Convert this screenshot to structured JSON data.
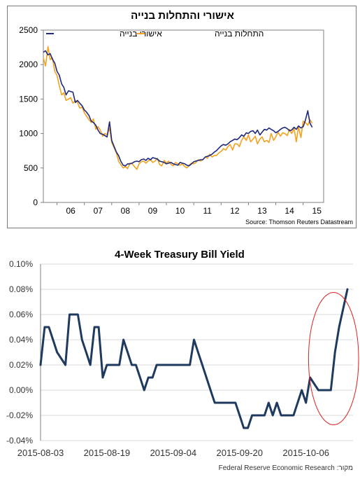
{
  "chart_data": [
    {
      "type": "line",
      "title": "אישורי והתחלות בנייה",
      "source": "Source: Thomson Reuters Datastream",
      "ylim": [
        0,
        2500
      ],
      "yticks": [
        "0",
        "500",
        "1000",
        "1500",
        "2000",
        "2500"
      ],
      "yticks_values": [
        0,
        500,
        1000,
        1500,
        2000,
        2500
      ],
      "xlim": [
        2005.5,
        2015.75
      ],
      "xticks": [
        "06",
        "07",
        "08",
        "09",
        "10",
        "11",
        "12",
        "13",
        "14",
        "15"
      ],
      "xticks_values": [
        2006,
        2007,
        2008,
        2009,
        2010,
        2011,
        2012,
        2013,
        2014,
        2015
      ],
      "grid": false,
      "legend_position": "top",
      "series": [
        {
          "name": "אישורי בנייה",
          "color": "#1f2a7a",
          "x": [
            2005.5,
            2005.58,
            2005.67,
            2005.75,
            2005.83,
            2005.92,
            2006.0,
            2006.08,
            2006.17,
            2006.25,
            2006.33,
            2006.42,
            2006.5,
            2006.58,
            2006.67,
            2006.75,
            2006.83,
            2006.92,
            2007.0,
            2007.08,
            2007.17,
            2007.25,
            2007.33,
            2007.42,
            2007.5,
            2007.58,
            2007.67,
            2007.75,
            2007.83,
            2007.92,
            2008.0,
            2008.08,
            2008.17,
            2008.25,
            2008.33,
            2008.42,
            2008.5,
            2008.58,
            2008.67,
            2008.75,
            2008.83,
            2008.92,
            2009.0,
            2009.08,
            2009.17,
            2009.25,
            2009.33,
            2009.42,
            2009.5,
            2009.58,
            2009.67,
            2009.75,
            2009.83,
            2009.92,
            2010.0,
            2010.08,
            2010.17,
            2010.25,
            2010.33,
            2010.42,
            2010.5,
            2010.58,
            2010.67,
            2010.75,
            2010.83,
            2010.92,
            2011.0,
            2011.08,
            2011.17,
            2011.25,
            2011.33,
            2011.42,
            2011.5,
            2011.58,
            2011.67,
            2011.75,
            2011.83,
            2011.92,
            2012.0,
            2012.08,
            2012.17,
            2012.25,
            2012.33,
            2012.42,
            2012.5,
            2012.58,
            2012.67,
            2012.75,
            2012.83,
            2012.92,
            2013.0,
            2013.08,
            2013.17,
            2013.25,
            2013.33,
            2013.42,
            2013.5,
            2013.58,
            2013.67,
            2013.75,
            2013.83,
            2013.92,
            2014.0,
            2014.08,
            2014.17,
            2014.25,
            2014.33,
            2014.42,
            2014.5,
            2014.58,
            2014.67,
            2014.75,
            2014.83,
            2014.92,
            2015.0,
            2015.08,
            2015.17,
            2015.25,
            2015.33
          ],
          "values": [
            2180,
            2200,
            2140,
            2160,
            2080,
            2020,
            1900,
            1850,
            1720,
            1670,
            1560,
            1620,
            1610,
            1600,
            1450,
            1480,
            1440,
            1400,
            1340,
            1310,
            1260,
            1180,
            1160,
            1120,
            1050,
            1000,
            990,
            970,
            950,
            1170,
            900,
            820,
            730,
            680,
            600,
            540,
            530,
            560,
            560,
            570,
            590,
            600,
            590,
            620,
            630,
            610,
            640,
            620,
            650,
            640,
            630,
            600,
            590,
            580,
            560,
            570,
            580,
            560,
            550,
            540,
            580,
            570,
            560,
            540,
            530,
            560,
            590,
            600,
            610,
            620,
            620,
            660,
            670,
            680,
            700,
            730,
            750,
            790,
            820,
            840,
            830,
            850,
            880,
            900,
            920,
            910,
            940,
            980,
            960,
            1010,
            1000,
            1030,
            1040,
            1000,
            1050,
            980,
            1020,
            1060,
            1050,
            1080,
            1060,
            1040,
            1010,
            1030,
            1060,
            1080,
            1090,
            1070,
            1040,
            1050,
            1090,
            1060,
            1110,
            1080,
            1100,
            1190,
            1330,
            1150,
            1090
          ]
        },
        {
          "name": "התחלות בנייה",
          "color": "#f5a11e",
          "x": [
            2005.5,
            2005.58,
            2005.67,
            2005.75,
            2005.83,
            2005.92,
            2006.0,
            2006.08,
            2006.17,
            2006.25,
            2006.33,
            2006.42,
            2006.5,
            2006.58,
            2006.67,
            2006.75,
            2006.83,
            2006.92,
            2007.0,
            2007.08,
            2007.17,
            2007.25,
            2007.33,
            2007.42,
            2007.5,
            2007.58,
            2007.67,
            2007.75,
            2007.83,
            2007.92,
            2008.0,
            2008.08,
            2008.17,
            2008.25,
            2008.33,
            2008.42,
            2008.5,
            2008.58,
            2008.67,
            2008.75,
            2008.83,
            2008.92,
            2009.0,
            2009.08,
            2009.17,
            2009.25,
            2009.33,
            2009.42,
            2009.5,
            2009.58,
            2009.67,
            2009.75,
            2009.83,
            2009.92,
            2010.0,
            2010.08,
            2010.17,
            2010.25,
            2010.33,
            2010.42,
            2010.5,
            2010.58,
            2010.67,
            2010.75,
            2010.83,
            2010.92,
            2011.0,
            2011.08,
            2011.17,
            2011.25,
            2011.33,
            2011.42,
            2011.5,
            2011.58,
            2011.67,
            2011.75,
            2011.83,
            2011.92,
            2012.0,
            2012.08,
            2012.17,
            2012.25,
            2012.33,
            2012.42,
            2012.5,
            2012.58,
            2012.67,
            2012.75,
            2012.83,
            2012.92,
            2013.0,
            2013.08,
            2013.17,
            2013.25,
            2013.33,
            2013.42,
            2013.5,
            2013.58,
            2013.67,
            2013.75,
            2013.83,
            2013.92,
            2014.0,
            2014.08,
            2014.17,
            2014.25,
            2014.33,
            2014.42,
            2014.5,
            2014.58,
            2014.67,
            2014.75,
            2014.83,
            2014.92,
            2015.0,
            2015.08,
            2015.17,
            2015.25,
            2015.33
          ],
          "values": [
            2100,
            1980,
            2260,
            2070,
            2100,
            1900,
            1840,
            1700,
            1560,
            1590,
            1480,
            1500,
            1520,
            1440,
            1480,
            1450,
            1370,
            1380,
            1300,
            1250,
            1200,
            1160,
            1210,
            1060,
            1100,
            1050,
            960,
            1000,
            980,
            1080,
            870,
            800,
            720,
            600,
            550,
            500,
            520,
            490,
            570,
            560,
            520,
            480,
            560,
            590,
            600,
            570,
            600,
            620,
            580,
            600,
            640,
            550,
            530,
            610,
            570,
            600,
            550,
            530,
            580,
            560,
            540,
            560,
            520,
            500,
            540,
            570,
            560,
            580,
            620,
            600,
            620,
            660,
            640,
            700,
            660,
            680,
            680,
            720,
            740,
            780,
            760,
            810,
            840,
            760,
            850,
            850,
            810,
            900,
            950,
            900,
            980,
            880,
            920,
            960,
            850,
            920,
            950,
            880,
            900,
            870,
            1000,
            900,
            950,
            1020,
            960,
            1010,
            1000,
            970,
            1060,
            1000,
            1070,
            880,
            1100,
            940,
            1180,
            1160,
            1120,
            1200,
            1150
          ]
        }
      ]
    },
    {
      "type": "line",
      "title": "4-Week Treasury Bill Yield",
      "source": "Federal Reserve Economic Research :מקור",
      "ylim": [
        -0.04,
        0.1
      ],
      "yticks": [
        "0.10%",
        "0.08%",
        "0.06%",
        "0.04%",
        "0.02%",
        "0.00%",
        "-0.02%",
        "-0.04%"
      ],
      "yticks_values": [
        0.1,
        0.08,
        0.06,
        0.04,
        0.02,
        0.0,
        -0.02,
        -0.04
      ],
      "xlim": [
        0,
        74
      ],
      "xticks": [
        "2015-08-03",
        "2015-08-19",
        "2015-09-04",
        "2015-09-20",
        "2015-10-06"
      ],
      "xticks_values": [
        0,
        16,
        32,
        48,
        64
      ],
      "grid": true,
      "highlight": {
        "shape": "ellipse",
        "color": "#e02020",
        "around_x": [
          68,
          74
        ]
      },
      "series": [
        {
          "color": "#1f3a5f",
          "x": [
            0,
            1,
            2,
            3,
            4,
            5,
            6,
            7,
            8,
            9,
            10,
            11,
            12,
            13,
            14,
            15,
            16,
            17,
            18,
            19,
            20,
            21,
            22,
            23,
            24,
            25,
            26,
            27,
            28,
            29,
            30,
            31,
            32,
            33,
            34,
            35,
            36,
            37,
            38,
            39,
            40,
            41,
            42,
            43,
            44,
            45,
            46,
            47,
            48,
            49,
            50,
            51,
            52,
            53,
            54,
            55,
            56,
            57,
            58,
            59,
            60,
            61,
            62,
            63,
            64,
            65,
            66,
            67,
            68,
            69,
            70,
            71,
            72,
            73,
            74
          ],
          "values": [
            0.02,
            0.05,
            0.05,
            0.04,
            0.03,
            0.025,
            0.02,
            0.06,
            0.06,
            0.06,
            0.04,
            0.03,
            0.02,
            0.05,
            0.05,
            0.01,
            0.02,
            0.02,
            0.02,
            0.02,
            0.04,
            0.03,
            0.02,
            0.02,
            0.01,
            0.0,
            0.01,
            0.01,
            0.02,
            0.02,
            0.02,
            0.02,
            0.02,
            0.02,
            0.02,
            0.02,
            0.02,
            0.04,
            0.03,
            0.02,
            0.01,
            0.0,
            -0.01,
            -0.01,
            -0.01,
            -0.01,
            -0.01,
            -0.01,
            -0.02,
            -0.03,
            -0.03,
            -0.02,
            -0.02,
            -0.02,
            -0.02,
            -0.01,
            -0.02,
            -0.01,
            -0.02,
            -0.02,
            -0.02,
            -0.02,
            -0.01,
            0.0,
            -0.01,
            0.01,
            0.005,
            0.0,
            0.0,
            0.0,
            0.0,
            0.03,
            0.05,
            0.065,
            0.08
          ]
        }
      ]
    }
  ]
}
